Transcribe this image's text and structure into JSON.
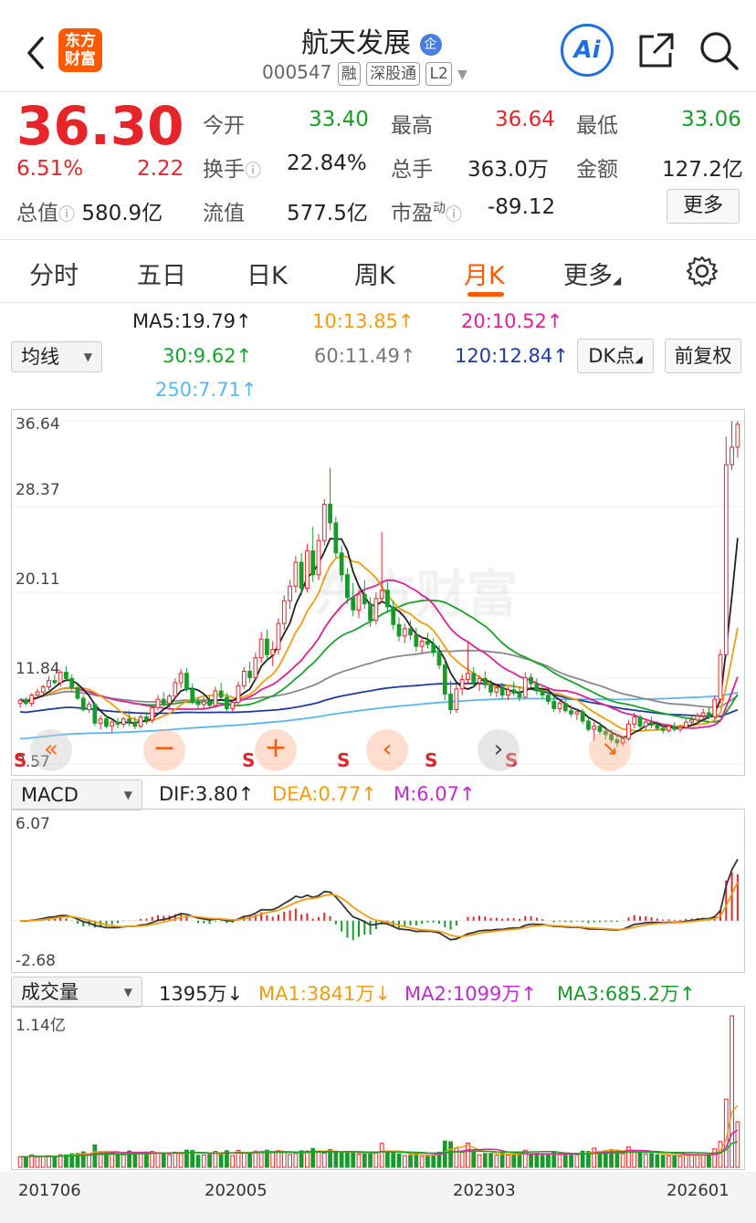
{
  "header": {
    "title": "航天发展",
    "badge": "企",
    "logo_line1": "东方",
    "logo_line2": "财富",
    "code": "000547",
    "tags": [
      "融",
      "深股通",
      "L2"
    ],
    "ai_label": "Ai"
  },
  "quote": {
    "price": "36.30",
    "change_pct": "6.51%",
    "change": "2.22",
    "open_label": "今开",
    "open": "33.40",
    "high_label": "最高",
    "high": "36.64",
    "low_label": "最低",
    "low": "33.06",
    "turnover_label": "换手",
    "turnover": "22.84%",
    "volume_label": "总手",
    "volume": "363.0万",
    "amount_label": "金额",
    "amount": "127.2亿",
    "mktcap_label": "总值",
    "mktcap": "580.9亿",
    "float_label": "流值",
    "float": "577.5亿",
    "pe_label": "市盈",
    "pe_sup": "动",
    "pe": "-89.12",
    "more_btn": "更多"
  },
  "tabs": [
    "分时",
    "五日",
    "日K",
    "周K",
    "月K",
    "更多"
  ],
  "active_tab": 4,
  "ma": {
    "selector": "均线",
    "ma5": "MA5:19.79↑",
    "ma10": "10:13.85↑",
    "ma20": "20:10.52↑",
    "ma30": "30:9.62↑",
    "ma60": "60:11.49↑",
    "ma120": "120:12.84↑",
    "ma250": "250:7.71↑",
    "dk_btn": "DK点",
    "fq_btn": "前复权"
  },
  "kline": {
    "watermark": "东方财富",
    "y_labels": [
      "36.64",
      "28.37",
      "20.11",
      "11.84",
      "3.57"
    ],
    "s_marks": [
      "S",
      "S",
      "S",
      "S",
      "S"
    ]
  },
  "macd": {
    "selector": "MACD",
    "dif": "DIF:3.80↑",
    "dea": "DEA:0.77↑",
    "m": "M:6.07↑",
    "y_top": "6.07",
    "y_bottom": "-2.68"
  },
  "volume": {
    "selector": "成交量",
    "current": "1395万↓",
    "ma1": "MA1:3841万↓",
    "ma2": "MA2:1099万↑",
    "ma3": "MA3:685.2万↑",
    "y_top": "1.14亿"
  },
  "dates": [
    "201706",
    "202005",
    "202303",
    "202601"
  ],
  "colors": {
    "up": "#e5252a",
    "down": "#1a9a2a",
    "accent": "#ff5a00",
    "ma5": "#222222",
    "ma10": "#f39c12",
    "ma20": "#e0209a",
    "ma30": "#1aa32a",
    "ma60": "#888888",
    "ma120": "#1f3a9e",
    "ma250": "#5bb5ee"
  },
  "icons": [
    "back-icon",
    "logo",
    "ai-icon",
    "share-icon",
    "search-icon",
    "settings-icon"
  ],
  "chart_data": {
    "type": "candlestick",
    "title": "",
    "ylim": [
      3.57,
      36.64
    ],
    "candles": [
      [
        9.4,
        9.9,
        9.0,
        9.7
      ],
      [
        9.7,
        10.0,
        9.2,
        9.4
      ],
      [
        9.4,
        10.4,
        9.1,
        10.2
      ],
      [
        10.2,
        10.8,
        9.9,
        10.5
      ],
      [
        10.5,
        11.2,
        10.2,
        11.0
      ],
      [
        11.0,
        12.0,
        10.7,
        11.6
      ],
      [
        11.6,
        12.2,
        11.2,
        11.4
      ],
      [
        11.4,
        12.6,
        11.0,
        12.4
      ],
      [
        12.4,
        13.0,
        11.5,
        11.8
      ],
      [
        11.8,
        12.2,
        10.6,
        10.9
      ],
      [
        10.9,
        11.2,
        9.7,
        9.9
      ],
      [
        9.9,
        10.2,
        8.6,
        8.8
      ],
      [
        8.8,
        9.6,
        8.5,
        9.3
      ],
      [
        9.3,
        9.5,
        7.2,
        7.5
      ],
      [
        7.5,
        8.2,
        6.9,
        7.9
      ],
      [
        7.9,
        8.3,
        7.0,
        7.2
      ],
      [
        7.2,
        7.8,
        6.6,
        7.6
      ],
      [
        7.6,
        8.0,
        7.0,
        7.4
      ],
      [
        7.4,
        8.1,
        7.1,
        7.9
      ],
      [
        7.9,
        8.7,
        7.2,
        7.6
      ],
      [
        7.6,
        8.1,
        6.9,
        7.2
      ],
      [
        7.2,
        8.3,
        7.0,
        8.1
      ],
      [
        8.1,
        8.6,
        7.4,
        7.8
      ],
      [
        7.8,
        9.2,
        7.5,
        9.0
      ],
      [
        9.0,
        10.2,
        8.7,
        9.8
      ],
      [
        9.8,
        10.5,
        9.1,
        9.4
      ],
      [
        9.4,
        10.3,
        9.0,
        10.1
      ],
      [
        10.1,
        11.8,
        9.8,
        11.4
      ],
      [
        11.4,
        12.7,
        10.9,
        12.3
      ],
      [
        12.3,
        12.8,
        10.5,
        10.8
      ],
      [
        10.8,
        11.3,
        9.3,
        9.6
      ],
      [
        9.6,
        10.0,
        8.9,
        9.3
      ],
      [
        9.3,
        10.0,
        8.8,
        9.6
      ],
      [
        9.6,
        10.1,
        8.9,
        9.2
      ],
      [
        9.2,
        11.0,
        9.0,
        10.6
      ],
      [
        10.6,
        11.4,
        9.8,
        10.0
      ],
      [
        10.0,
        10.4,
        8.6,
        8.9
      ],
      [
        8.9,
        9.7,
        8.6,
        9.5
      ],
      [
        9.5,
        11.5,
        9.2,
        11.1
      ],
      [
        11.1,
        12.9,
        10.8,
        12.5
      ],
      [
        12.5,
        13.4,
        11.4,
        11.9
      ],
      [
        11.9,
        14.3,
        11.6,
        13.8
      ],
      [
        13.8,
        16.3,
        13.3,
        15.6
      ],
      [
        15.6,
        16.5,
        13.5,
        14.1
      ],
      [
        14.1,
        15.4,
        13.0,
        14.6
      ],
      [
        14.6,
        17.6,
        14.1,
        17.1
      ],
      [
        17.1,
        19.8,
        16.5,
        19.3
      ],
      [
        19.3,
        21.3,
        18.5,
        20.7
      ],
      [
        20.7,
        23.6,
        20.1,
        23.0
      ],
      [
        23.0,
        23.9,
        19.8,
        20.5
      ],
      [
        20.5,
        24.8,
        20.1,
        24.1
      ],
      [
        24.1,
        26.4,
        21.1,
        21.8
      ],
      [
        21.8,
        25.7,
        21.3,
        25.1
      ],
      [
        25.1,
        29.1,
        24.6,
        28.6
      ],
      [
        28.6,
        32.1,
        26.1,
        26.8
      ],
      [
        26.8,
        27.4,
        23.4,
        23.9
      ],
      [
        23.9,
        24.6,
        21.1,
        21.8
      ],
      [
        21.8,
        22.4,
        19.0,
        19.6
      ],
      [
        19.6,
        21.0,
        17.8,
        18.4
      ],
      [
        18.4,
        20.4,
        17.6,
        19.9
      ],
      [
        19.9,
        21.3,
        18.5,
        19.0
      ],
      [
        19.0,
        19.6,
        16.8,
        17.4
      ],
      [
        17.4,
        20.1,
        17.0,
        19.5
      ],
      [
        19.5,
        25.9,
        19.1,
        20.3
      ],
      [
        20.3,
        21.1,
        18.1,
        18.7
      ],
      [
        18.7,
        19.3,
        16.5,
        17.0
      ],
      [
        17.0,
        17.7,
        15.4,
        15.9
      ],
      [
        15.9,
        17.1,
        15.2,
        16.6
      ],
      [
        16.6,
        17.4,
        15.5,
        16.0
      ],
      [
        16.0,
        16.7,
        14.4,
        14.9
      ],
      [
        14.9,
        15.8,
        14.3,
        15.4
      ],
      [
        15.4,
        16.2,
        14.7,
        15.1
      ],
      [
        15.1,
        15.7,
        13.9,
        14.3
      ],
      [
        14.3,
        15.0,
        12.7,
        13.1
      ],
      [
        13.1,
        13.6,
        9.7,
        10.3
      ],
      [
        10.3,
        11.6,
        8.4,
        8.8
      ],
      [
        8.8,
        11.2,
        8.5,
        10.8
      ],
      [
        10.8,
        12.2,
        10.2,
        11.7
      ],
      [
        11.7,
        15.4,
        11.2,
        12.3
      ],
      [
        12.3,
        12.9,
        10.9,
        11.4
      ],
      [
        11.4,
        12.1,
        10.6,
        11.8
      ],
      [
        11.8,
        12.5,
        10.8,
        11.2
      ],
      [
        11.2,
        11.7,
        10.1,
        10.5
      ],
      [
        10.5,
        11.3,
        10.0,
        10.9
      ],
      [
        10.9,
        11.4,
        9.8,
        10.2
      ],
      [
        10.2,
        11.0,
        9.7,
        10.7
      ],
      [
        10.7,
        11.5,
        10.1,
        10.4
      ],
      [
        10.4,
        11.0,
        9.6,
        10.0
      ],
      [
        10.0,
        12.4,
        9.9,
        11.9
      ],
      [
        11.9,
        12.3,
        10.9,
        11.3
      ],
      [
        11.3,
        11.8,
        10.2,
        10.6
      ],
      [
        10.6,
        11.0,
        9.8,
        10.2
      ],
      [
        10.2,
        10.6,
        9.3,
        9.6
      ],
      [
        9.6,
        10.1,
        8.6,
        8.9
      ],
      [
        8.9,
        9.7,
        8.5,
        9.4
      ],
      [
        9.4,
        9.8,
        8.5,
        8.7
      ],
      [
        8.7,
        9.2,
        8.1,
        8.4
      ],
      [
        8.4,
        8.9,
        7.8,
        8.6
      ],
      [
        8.6,
        8.9,
        7.4,
        7.7
      ],
      [
        7.7,
        8.0,
        6.7,
        6.9
      ],
      [
        6.9,
        7.6,
        5.8,
        7.2
      ],
      [
        7.2,
        7.6,
        6.4,
        6.7
      ],
      [
        6.7,
        7.2,
        5.9,
        6.4
      ],
      [
        6.4,
        6.9,
        5.6,
        5.9
      ],
      [
        5.9,
        6.4,
        5.2,
        5.6
      ],
      [
        5.6,
        6.2,
        5.3,
        6.0
      ],
      [
        6.0,
        7.8,
        5.8,
        7.4
      ],
      [
        7.4,
        8.5,
        7.0,
        8.1
      ],
      [
        8.1,
        8.3,
        6.9,
        7.2
      ],
      [
        7.2,
        7.9,
        6.8,
        7.6
      ],
      [
        7.6,
        8.1,
        7.0,
        7.3
      ],
      [
        7.3,
        7.7,
        6.8,
        7.0
      ],
      [
        7.0,
        7.3,
        6.5,
        6.8
      ],
      [
        6.8,
        7.4,
        6.6,
        7.2
      ],
      [
        7.2,
        7.6,
        6.7,
        6.9
      ],
      [
        6.9,
        7.3,
        6.6,
        7.1
      ],
      [
        7.1,
        7.9,
        6.9,
        7.6
      ],
      [
        7.6,
        8.2,
        7.3,
        7.8
      ],
      [
        7.8,
        8.5,
        7.4,
        8.2
      ],
      [
        8.2,
        8.9,
        7.8,
        8.5
      ],
      [
        8.5,
        9.0,
        7.9,
        8.1
      ],
      [
        8.1,
        10.2,
        7.9,
        9.8
      ],
      [
        9.8,
        14.6,
        9.4,
        14.1
      ],
      [
        14.1,
        35.1,
        13.8,
        32.4
      ],
      [
        32.4,
        36.6,
        31.9,
        34.1
      ],
      [
        34.1,
        36.64,
        33.06,
        36.3
      ]
    ],
    "ma_series": [
      "MA5",
      "MA10",
      "MA20",
      "MA30",
      "MA60",
      "MA120",
      "MA250"
    ],
    "macd": {
      "ylim": [
        -2.68,
        6.07
      ]
    },
    "volume": {
      "ymax_label": "1.14亿"
    }
  }
}
